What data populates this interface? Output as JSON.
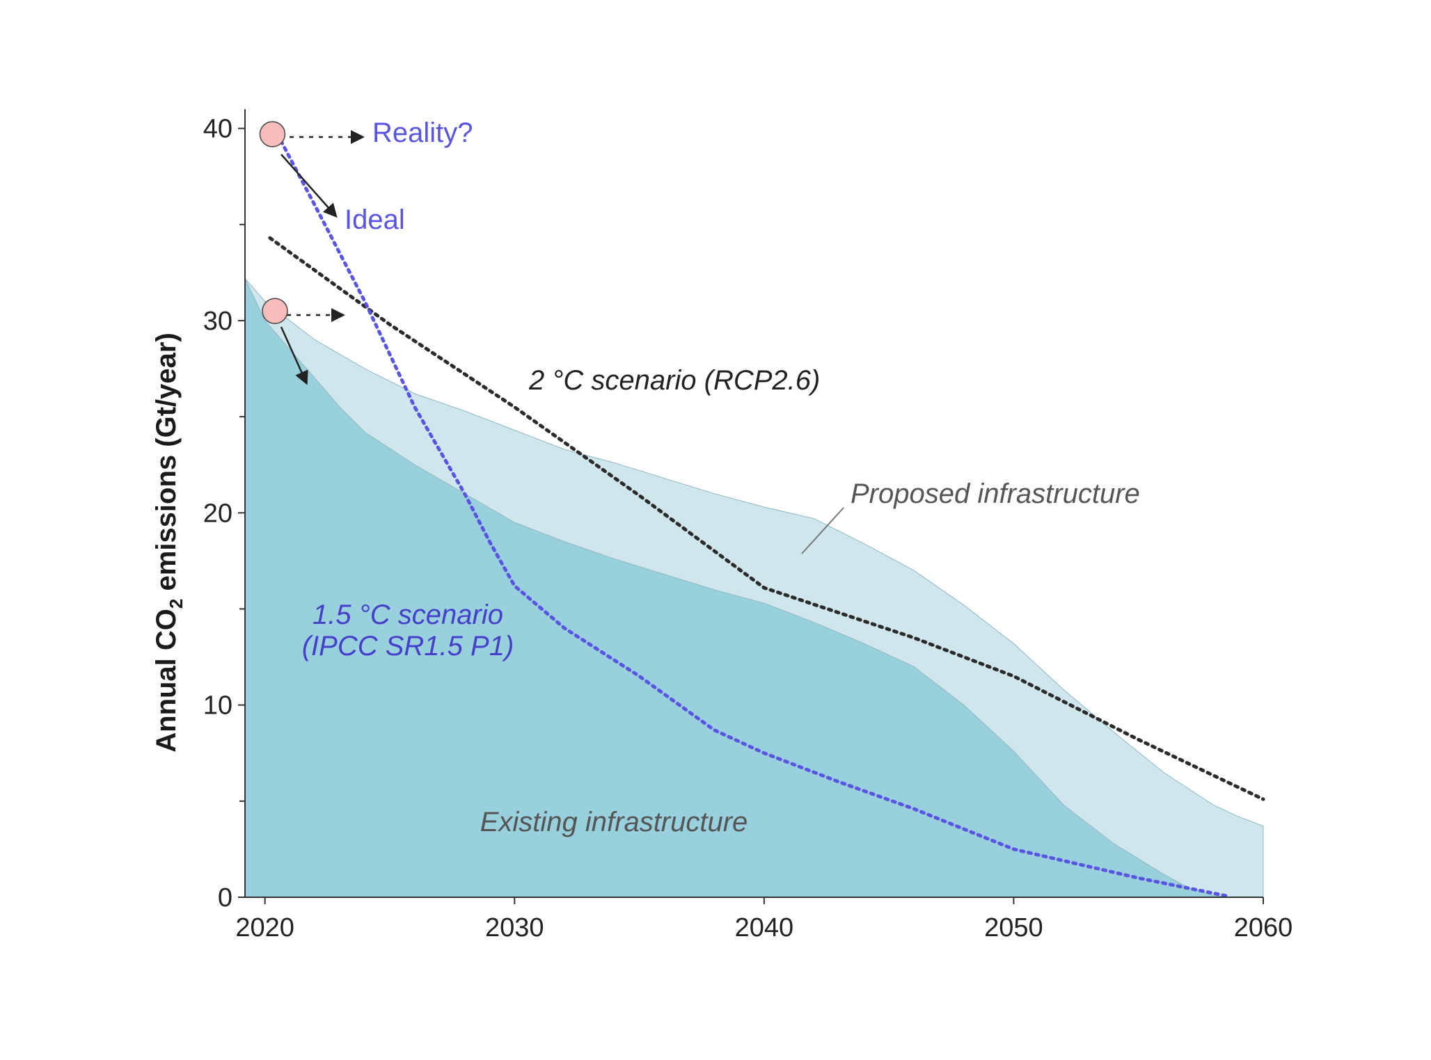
{
  "chart_data": {
    "type": "area",
    "ylabel": "Annual CO",
    "ylabel_sub": "2",
    "ylabel_tail": " emissions (Gt/year)",
    "xlim": [
      2019.2,
      2060
    ],
    "ylim": [
      0,
      41
    ],
    "x_ticks": [
      2020,
      2030,
      2040,
      2050,
      2060
    ],
    "y_ticks": [
      0,
      10,
      20,
      30,
      40
    ],
    "y_minor_ticks": [
      5,
      15,
      25,
      35
    ],
    "series": [
      {
        "name": "Proposed infrastructure",
        "kind": "area",
        "color": "#cfe6ec",
        "x": [
          2019.2,
          2020,
          2022,
          2024,
          2026,
          2028,
          2030,
          2032,
          2034,
          2036,
          2038,
          2040,
          2042,
          2044,
          2046,
          2048,
          2050,
          2052,
          2054,
          2056,
          2058,
          2059,
          2060
        ],
        "y": [
          32.2,
          31.0,
          29.0,
          27.5,
          26.2,
          25.3,
          24.3,
          23.3,
          22.6,
          21.8,
          21.0,
          20.3,
          19.7,
          18.4,
          17.0,
          15.2,
          13.2,
          10.8,
          8.6,
          6.5,
          4.8,
          4.2,
          3.7
        ]
      },
      {
        "name": "Existing infrastructure",
        "kind": "area",
        "color": "#98d0dd",
        "x": [
          2019.2,
          2020,
          2022,
          2023,
          2024,
          2026,
          2028,
          2030,
          2032,
          2034,
          2036,
          2038,
          2040,
          2042,
          2044,
          2046,
          2048,
          2050,
          2052,
          2054,
          2056,
          2057,
          2058,
          2058.6
        ],
        "y": [
          32.2,
          30.0,
          27.0,
          25.5,
          24.2,
          22.5,
          21.0,
          19.5,
          18.5,
          17.6,
          16.8,
          16.0,
          15.3,
          14.3,
          13.2,
          12.0,
          10.0,
          7.6,
          4.8,
          2.8,
          1.2,
          0.5,
          0.1,
          0
        ]
      },
      {
        "name": "2 °C scenario (RCP2.6)",
        "kind": "dotted-line",
        "color": "#2b2b2b",
        "x": [
          2020.2,
          2025,
          2030,
          2035,
          2040,
          2043,
          2046,
          2050,
          2055,
          2060
        ],
        "y": [
          34.3,
          29.8,
          25.5,
          20.9,
          16.1,
          14.8,
          13.5,
          11.5,
          8.2,
          5.1
        ]
      },
      {
        "name": "1.5 °C scenario (IPCC SR1.5 P1)",
        "kind": "dotted-line",
        "color": "#5a55e0",
        "x": [
          2020.5,
          2022,
          2024,
          2026,
          2028,
          2029,
          2030,
          2032,
          2035,
          2038,
          2040,
          2043,
          2046,
          2050,
          2055,
          2058.6
        ],
        "y": [
          39.7,
          36.0,
          31.0,
          25.5,
          21.0,
          18.5,
          16.2,
          14.0,
          11.5,
          8.7,
          7.5,
          6.0,
          4.6,
          2.5,
          1.0,
          0.05
        ]
      }
    ],
    "annotations": {
      "reality": "Reality?",
      "ideal": "Ideal",
      "scenario_2c": "2 °C scenario (RCP2.6)",
      "proposed": "Proposed infrastructure",
      "scenario_15_line1": "1.5 °C scenario",
      "scenario_15_line2": "(IPCC SR1.5 P1)",
      "existing": "Existing infrastructure"
    },
    "markers": [
      {
        "name": "start-40",
        "x": 2020.3,
        "y": 39.7,
        "color": "#f7bcbc"
      },
      {
        "name": "start-30",
        "x": 2020.4,
        "y": 30.5,
        "color": "#f7bcbc"
      }
    ],
    "colors": {
      "axis": "#333333",
      "purple_text": "#5a55e0",
      "purple_text_dark": "#4640c8",
      "dark_text": "#222222",
      "gray_text": "#555555",
      "marker_stroke": "#444444"
    }
  }
}
